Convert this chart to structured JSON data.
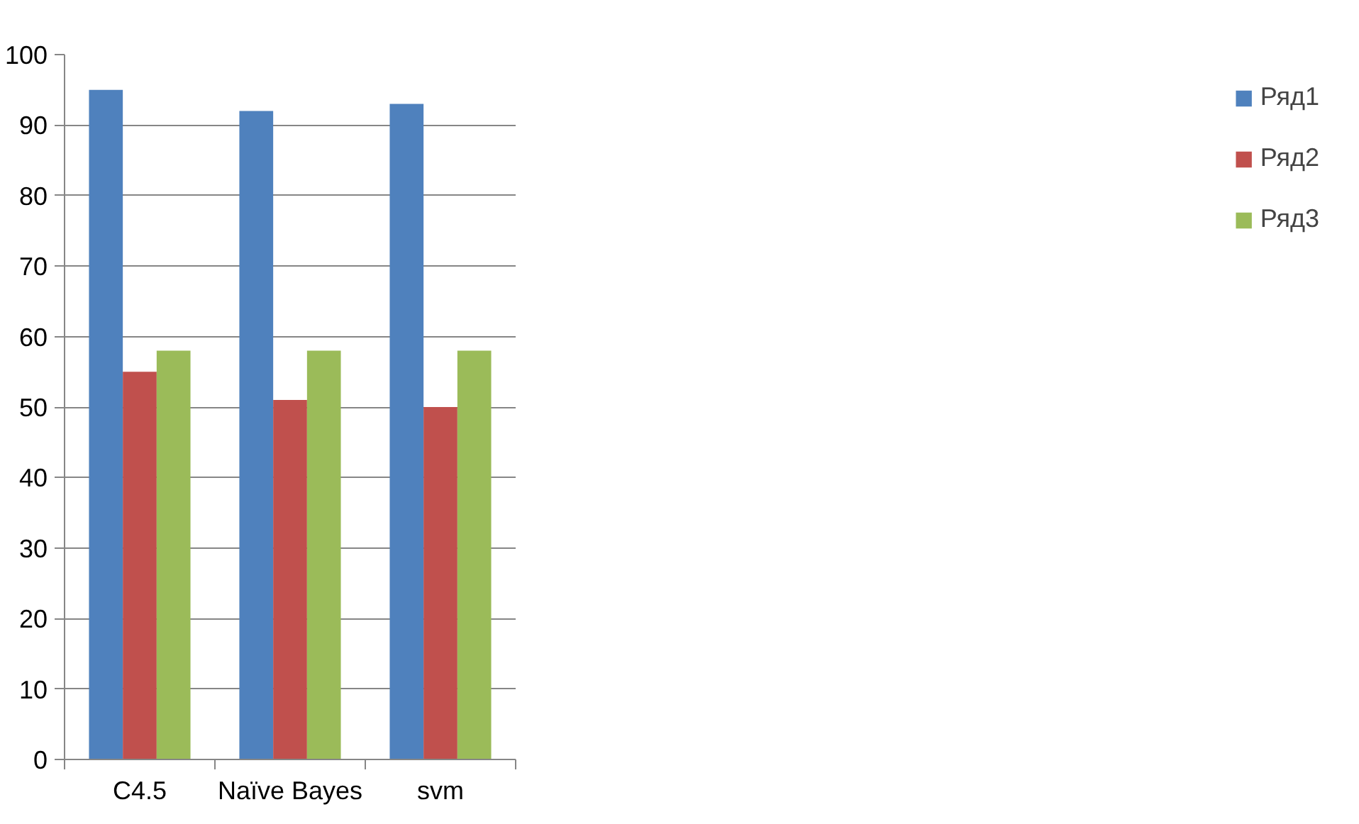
{
  "chart_data": {
    "type": "bar",
    "categories": [
      "C4.5",
      "Naïve Bayes",
      "svm"
    ],
    "series": [
      {
        "name": "Ряд1",
        "color": "#4f81bd",
        "values": [
          95,
          92,
          93
        ]
      },
      {
        "name": "Ряд2",
        "color": "#c0504d",
        "values": [
          55,
          51,
          50
        ]
      },
      {
        "name": "Ряд3",
        "color": "#9bbb59",
        "values": [
          58,
          58,
          58
        ]
      }
    ],
    "ylim": [
      0,
      100
    ],
    "yticks": [
      0,
      10,
      20,
      30,
      40,
      50,
      60,
      70,
      80,
      90,
      100
    ],
    "grid": "y",
    "legend": "right"
  }
}
